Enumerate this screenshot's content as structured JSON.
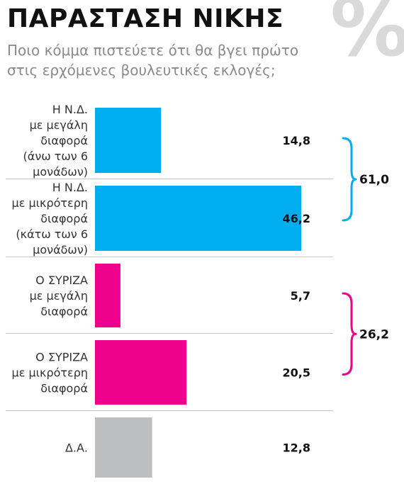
{
  "chart_data": {
    "type": "bar",
    "orientation": "horizontal",
    "title": "ΠΑΡΑΣΤΑΣΗ ΝΙΚΗΣ",
    "subtitle_lines": [
      "Ποιο κόμμα πιστεύετε ότι θα βγει πρώτο",
      "στις ερχόμενες βουλευτικές εκλογές;"
    ],
    "unit_symbol": "%",
    "categories": [
      [
        "Η Ν.Δ.",
        "με μεγάλη",
        "διαφορά",
        "(άνω των 6",
        "μονάδων)"
      ],
      [
        "Η Ν.Δ.",
        "με μικρότερη",
        "διαφορά",
        "(κάτω των 6",
        "μονάδων)"
      ],
      [
        "Ο ΣΥΡΙΖΑ",
        "με μεγάλη",
        "διαφορά"
      ],
      [
        "Ο ΣΥΡΙΖΑ",
        "με μικρότερη",
        "διαφορά"
      ],
      [
        "Δ.Α."
      ]
    ],
    "values": [
      14.8,
      46.2,
      5.7,
      20.5,
      12.8
    ],
    "value_labels": [
      "14,8",
      "46,2",
      "5,7",
      "20,5",
      "12,8"
    ],
    "colors": [
      "#00aeef",
      "#00aeef",
      "#ec008c",
      "#ec008c",
      "#bcbec0"
    ],
    "groups": [
      {
        "label": "61,0",
        "total": 61.0,
        "members": [
          0,
          1
        ],
        "color": "#00aeef"
      },
      {
        "label": "26,2",
        "total": 26.2,
        "members": [
          2,
          3
        ],
        "color": "#ec008c"
      }
    ],
    "xlim": [
      0,
      50
    ],
    "grid": false,
    "legend": "none"
  }
}
